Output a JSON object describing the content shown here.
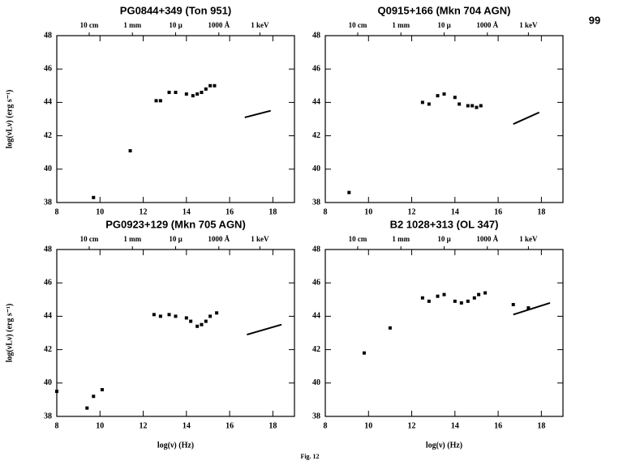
{
  "page_number": "99",
  "caption": "Fig. 12",
  "chart_data": [
    {
      "type": "scatter",
      "title": "PG0844+349 (Ton 951)",
      "ylabel": "log(νLν) (erg s⁻¹)",
      "xlim": [
        8,
        19
      ],
      "ylim": [
        38,
        48
      ],
      "xticks": [
        8,
        10,
        12,
        14,
        16,
        18
      ],
      "yticks": [
        38,
        40,
        42,
        44,
        46,
        48
      ],
      "x2ticks": [
        {
          "value": 9.5,
          "label": "10 cm"
        },
        {
          "value": 11.5,
          "label": "1 mm"
        },
        {
          "value": 13.5,
          "label": "10 μ"
        },
        {
          "value": 15.5,
          "label": "1000 Å"
        },
        {
          "value": 17.4,
          "label": "1 keV"
        }
      ],
      "points": {
        "x": [
          9.7,
          11.4,
          12.6,
          12.8,
          13.2,
          13.5,
          14.0,
          14.3,
          14.5,
          14.7,
          14.9,
          15.1,
          15.3
        ],
        "y": [
          38.3,
          41.1,
          44.1,
          44.1,
          44.6,
          44.6,
          44.5,
          44.4,
          44.5,
          44.6,
          44.8,
          45.0,
          45.0
        ]
      },
      "xray": {
        "x": [
          16.7,
          17.9
        ],
        "y": [
          43.1,
          43.5
        ]
      }
    },
    {
      "type": "scatter",
      "title": "Q0915+166 (Mkn 704 AGN)",
      "xlim": [
        8,
        19
      ],
      "ylim": [
        38,
        48
      ],
      "xticks": [
        8,
        10,
        12,
        14,
        16,
        18
      ],
      "yticks": [
        38,
        40,
        42,
        44,
        46,
        48
      ],
      "x2ticks": [
        {
          "value": 9.5,
          "label": "10 cm"
        },
        {
          "value": 11.5,
          "label": "1 mm"
        },
        {
          "value": 13.5,
          "label": "10 μ"
        },
        {
          "value": 15.5,
          "label": "1000 Å"
        },
        {
          "value": 17.4,
          "label": "1 keV"
        }
      ],
      "points": {
        "x": [
          9.1,
          12.5,
          12.8,
          13.2,
          13.5,
          14.0,
          14.2,
          14.6,
          14.8,
          15.0,
          15.2
        ],
        "y": [
          38.6,
          44.0,
          43.9,
          44.4,
          44.5,
          44.3,
          43.9,
          43.8,
          43.8,
          43.7,
          43.8
        ]
      },
      "xray": {
        "x": [
          16.7,
          17.9
        ],
        "y": [
          42.7,
          43.4
        ]
      }
    },
    {
      "type": "scatter",
      "title": "PG0923+129 (Mkn 705 AGN)",
      "ylabel": "log(νLν) (erg s⁻¹)",
      "xlabel": "log(ν) (Hz)",
      "xlim": [
        8,
        19
      ],
      "ylim": [
        38,
        48
      ],
      "xticks": [
        8,
        10,
        12,
        14,
        16,
        18
      ],
      "yticks": [
        38,
        40,
        42,
        44,
        46,
        48
      ],
      "x2ticks": [
        {
          "value": 9.5,
          "label": "10 cm"
        },
        {
          "value": 11.5,
          "label": "1 mm"
        },
        {
          "value": 13.5,
          "label": "10 μ"
        },
        {
          "value": 15.5,
          "label": "1000 Å"
        },
        {
          "value": 17.4,
          "label": "1 keV"
        }
      ],
      "points": {
        "x": [
          8.0,
          9.4,
          9.7,
          10.1,
          12.5,
          12.8,
          13.2,
          13.5,
          14.0,
          14.2,
          14.5,
          14.7,
          14.9,
          15.1,
          15.4
        ],
        "y": [
          39.5,
          38.5,
          39.2,
          39.6,
          44.1,
          44.0,
          44.1,
          44.0,
          43.9,
          43.7,
          43.4,
          43.5,
          43.7,
          44.0,
          44.2
        ]
      },
      "xray": {
        "x": [
          16.8,
          18.4
        ],
        "y": [
          42.9,
          43.5
        ]
      }
    },
    {
      "type": "scatter",
      "title": "B2 1028+313 (OL 347)",
      "xlabel": "log(ν) (Hz)",
      "xlim": [
        8,
        19
      ],
      "ylim": [
        38,
        48
      ],
      "xticks": [
        8,
        10,
        12,
        14,
        16,
        18
      ],
      "yticks": [
        38,
        40,
        42,
        44,
        46,
        48
      ],
      "x2ticks": [
        {
          "value": 9.5,
          "label": "10 cm"
        },
        {
          "value": 11.5,
          "label": "1 mm"
        },
        {
          "value": 13.5,
          "label": "10 μ"
        },
        {
          "value": 15.5,
          "label": "1000 Å"
        },
        {
          "value": 17.4,
          "label": "1 keV"
        }
      ],
      "points": {
        "x": [
          9.8,
          11.0,
          12.5,
          12.8,
          13.2,
          13.5,
          14.0,
          14.3,
          14.6,
          14.9,
          15.1,
          15.4,
          16.7,
          17.4
        ],
        "y": [
          41.8,
          43.3,
          45.1,
          44.9,
          45.2,
          45.3,
          44.9,
          44.8,
          44.9,
          45.1,
          45.3,
          45.4,
          44.7,
          44.5
        ]
      },
      "xray": {
        "x": [
          16.7,
          18.4
        ],
        "y": [
          44.1,
          44.8
        ]
      }
    }
  ]
}
